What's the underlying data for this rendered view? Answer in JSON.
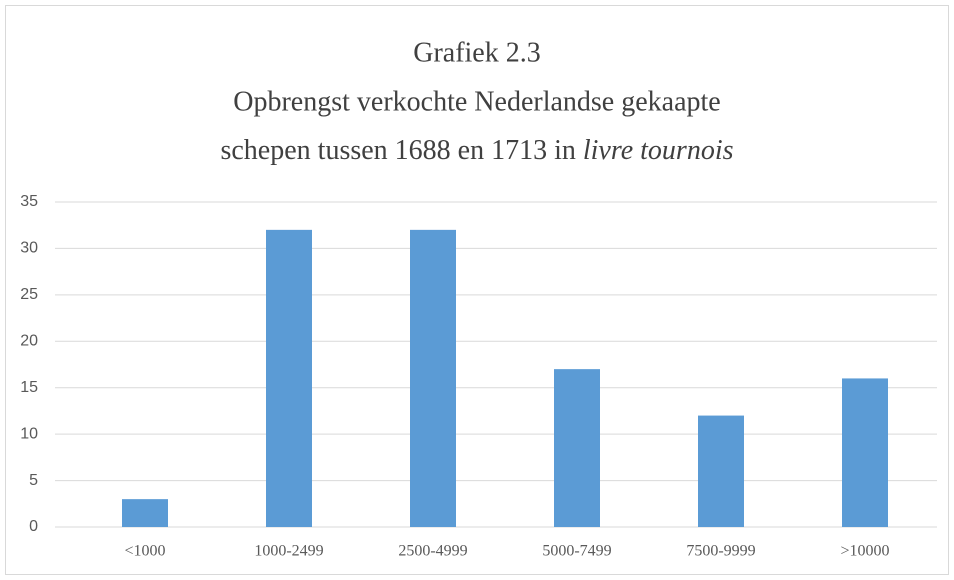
{
  "chart_data": {
    "type": "bar",
    "title": "Grafiek 2.3",
    "subtitle": [
      "Opbrengst verkochte Nederlandse gekaapte",
      "schepen tussen 1688 en 1713 in"
    ],
    "subtitle_italic": "livre tournois",
    "categories": [
      "<1000",
      "1000-2499",
      "2500-4999",
      "5000-7499",
      "7500-9999",
      ">10000"
    ],
    "values": [
      3,
      32,
      32,
      17,
      12,
      16
    ],
    "color": "#5b9bd5",
    "ylim": [
      0,
      35
    ],
    "yticks": [
      0,
      5,
      10,
      15,
      20,
      25,
      30,
      35
    ],
    "grid": true
  }
}
